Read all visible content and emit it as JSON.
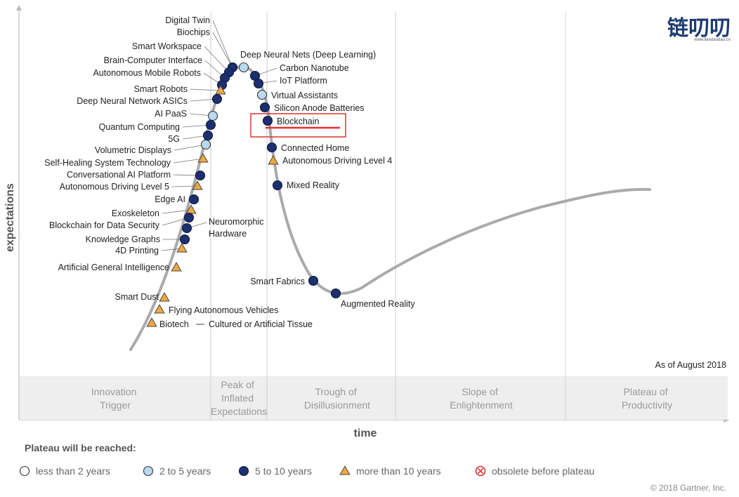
{
  "axes": {
    "y_label": "expectations",
    "x_label": "time"
  },
  "as_of": "As of August 2018",
  "copyright": "© 2018 Gartner, Inc.",
  "logo": {
    "text": "链叨叨",
    "sub": "www.liandaodao.cn"
  },
  "phases": [
    {
      "lines": [
        "Innovation",
        "Trigger"
      ]
    },
    {
      "lines": [
        "Peak of",
        "Inflated",
        "Expectations"
      ]
    },
    {
      "lines": [
        "Trough of",
        "Disillusionment"
      ]
    },
    {
      "lines": [
        "Slope of",
        "Enlightenment"
      ]
    },
    {
      "lines": [
        "Plateau of",
        "Productivity"
      ]
    }
  ],
  "legend": {
    "title": "Plateau will be reached:",
    "items": [
      {
        "marker": "circle-white",
        "label": "less than 2 years"
      },
      {
        "marker": "circle-light",
        "label": "2 to 5 years"
      },
      {
        "marker": "circle-dark",
        "label": "5 to 10 years"
      },
      {
        "marker": "triangle",
        "label": "more than 10 years"
      },
      {
        "marker": "circle-x",
        "label": "obsolete before plateau"
      }
    ]
  },
  "colors": {
    "curve": "#aaaaaa",
    "dark": "#1c2f6e",
    "light": "#b9d9ee",
    "triangle": "#f0a940",
    "highlight": "#e03030"
  },
  "highlight_label": "Blockchain",
  "technologies": [
    {
      "name": "Digital Twin",
      "marker": "circle-light"
    },
    {
      "name": "Biochips",
      "marker": "circle-dark"
    },
    {
      "name": "Smart Workspace",
      "marker": "circle-dark"
    },
    {
      "name": "Brain-Computer Interface",
      "marker": "circle-dark"
    },
    {
      "name": "Autonomous Mobile Robots",
      "marker": "circle-dark"
    },
    {
      "name": "Deep Neural Nets (Deep Learning)",
      "marker": "circle-light"
    },
    {
      "name": "Carbon Nanotube",
      "marker": "circle-dark"
    },
    {
      "name": "IoT Platform",
      "marker": "circle-dark"
    },
    {
      "name": "Virtual Assistants",
      "marker": "circle-light"
    },
    {
      "name": "Silicon Anode Batteries",
      "marker": "circle-dark"
    },
    {
      "name": "Blockchain",
      "marker": "circle-dark"
    },
    {
      "name": "Connected Home",
      "marker": "circle-dark"
    },
    {
      "name": "Autonomous Driving Level 4",
      "marker": "triangle"
    },
    {
      "name": "Mixed Reality",
      "marker": "circle-dark"
    },
    {
      "name": "Smart Robots",
      "marker": "triangle"
    },
    {
      "name": "Deep Neural Network ASICs",
      "marker": "circle-dark"
    },
    {
      "name": "AI PaaS",
      "marker": "circle-light"
    },
    {
      "name": "Quantum Computing",
      "marker": "circle-dark"
    },
    {
      "name": "5G",
      "marker": "circle-dark"
    },
    {
      "name": "Volumetric Displays",
      "marker": "circle-light"
    },
    {
      "name": "Self-Healing System Technology",
      "marker": "triangle"
    },
    {
      "name": "Conversational AI Platform",
      "marker": "circle-dark"
    },
    {
      "name": "Autonomous Driving Level 5",
      "marker": "triangle"
    },
    {
      "name": "Edge AI",
      "marker": "circle-dark"
    },
    {
      "name": "Exoskeleton",
      "marker": "triangle"
    },
    {
      "name": "Blockchain for Data Security",
      "marker": "circle-dark"
    },
    {
      "name": "Neuromorphic Hardware",
      "marker": "circle-dark"
    },
    {
      "name": "Knowledge Graphs",
      "marker": "circle-dark"
    },
    {
      "name": "4D Printing",
      "marker": "triangle"
    },
    {
      "name": "Artificial General Intelligence",
      "marker": "triangle"
    },
    {
      "name": "Smart Dust",
      "marker": "triangle"
    },
    {
      "name": "Flying Autonomous Vehicles",
      "marker": "triangle"
    },
    {
      "name": "Biotech — Cultured or Artificial Tissue",
      "marker": "triangle"
    },
    {
      "name": "Smart Fabrics",
      "marker": "circle-dark"
    },
    {
      "name": "Augmented Reality",
      "marker": "circle-dark"
    }
  ]
}
